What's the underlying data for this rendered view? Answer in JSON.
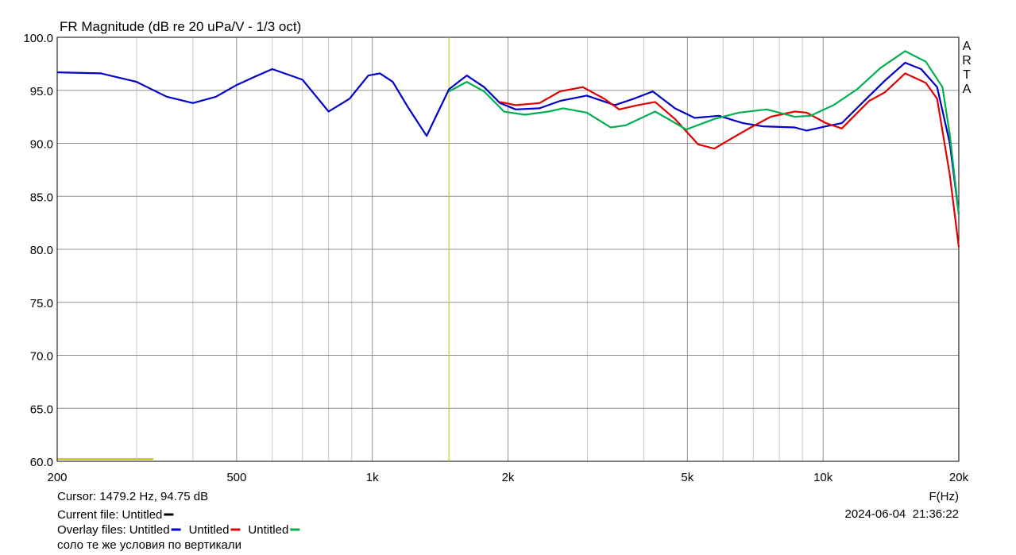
{
  "chart_data": {
    "type": "line",
    "title": "FR Magnitude (dB re 20 uPa/V - 1/3 oct)",
    "x_label": "F(Hz)",
    "log_x": true,
    "grid": true,
    "xlim": [
      200,
      20000
    ],
    "ylim": [
      60,
      100
    ],
    "xticks": [
      200,
      500,
      {
        "value": 1000,
        "label": "1k"
      },
      {
        "value": 2000,
        "label": "2k"
      },
      {
        "value": 5000,
        "label": "5k"
      },
      {
        "value": 10000,
        "label": "10k"
      },
      {
        "value": 20000,
        "label": "20k"
      }
    ],
    "x_minor_grid": [
      300,
      400,
      600,
      700,
      800,
      900,
      3000,
      4000,
      6000,
      7000,
      8000,
      9000
    ],
    "yticks": [
      {
        "value": 60,
        "label": "60.0"
      },
      {
        "value": 65,
        "label": "65.0"
      },
      {
        "value": 70,
        "label": "70.0"
      },
      {
        "value": 75,
        "label": "75.0"
      },
      {
        "value": 80,
        "label": "80.0"
      },
      {
        "value": 85,
        "label": "85.0"
      },
      {
        "value": 90,
        "label": "90.0"
      },
      {
        "value": 95,
        "label": "95.0"
      },
      {
        "value": 100,
        "label": "100.0"
      }
    ],
    "cursor": {
      "x": 1479.2,
      "label": "Cursor: 1479.2 Hz, 94.75 dB",
      "color": "#c8c800"
    },
    "current_file": {
      "label": "Current file:",
      "name": "Untitled",
      "color": "#000000"
    },
    "overlay_label": "Overlay files:",
    "series": [
      {
        "name": "Untitled",
        "color": "#0000c8",
        "x": [
          200,
          250,
          300,
          350,
          400,
          450,
          500,
          550,
          600,
          700,
          800,
          890,
          980,
          1040,
          1110,
          1200,
          1320,
          1390,
          1480,
          1620,
          1770,
          1920,
          2080,
          2350,
          2610,
          2990,
          3450,
          3800,
          4190,
          4690,
          5190,
          5870,
          6640,
          7340,
          8650,
          9190,
          10150,
          11000,
          12400,
          13700,
          15200,
          16500,
          17900,
          19100,
          20000
        ],
        "values": [
          96.7,
          96.6,
          95.8,
          94.4,
          93.8,
          94.4,
          95.5,
          96.3,
          97.0,
          96.0,
          93.0,
          94.2,
          96.4,
          96.6,
          95.8,
          93.4,
          90.7,
          92.7,
          95.1,
          96.4,
          95.3,
          93.8,
          93.2,
          93.3,
          94.0,
          94.5,
          93.6,
          94.2,
          94.9,
          93.3,
          92.4,
          92.6,
          91.9,
          91.6,
          91.5,
          91.2,
          91.6,
          91.9,
          94.1,
          95.9,
          97.6,
          97.0,
          95.3,
          90.0,
          83.3
        ]
      },
      {
        "name": "Untitled",
        "color": "#e00000",
        "x": [
          1920,
          2080,
          2350,
          2610,
          2930,
          3270,
          3530,
          3880,
          4240,
          4690,
          5280,
          5740,
          6230,
          6910,
          7650,
          8650,
          9190,
          10150,
          11000,
          12650,
          13700,
          15200,
          16900,
          17900,
          19100,
          20000
        ],
        "values": [
          93.9,
          93.6,
          93.8,
          94.9,
          95.3,
          94.2,
          93.2,
          93.6,
          93.9,
          92.3,
          89.9,
          89.5,
          90.4,
          91.5,
          92.5,
          93.0,
          92.9,
          91.9,
          91.4,
          94.0,
          94.8,
          96.6,
          95.7,
          94.2,
          87.0,
          80.2
        ]
      },
      {
        "name": "Untitled",
        "color": "#00b050",
        "x": [
          1480,
          1620,
          1770,
          1960,
          2180,
          2460,
          2650,
          2990,
          3380,
          3650,
          4240,
          4490,
          4970,
          5740,
          6510,
          7500,
          8650,
          9380,
          10550,
          11900,
          13400,
          15200,
          16900,
          18400,
          19100,
          20000
        ],
        "values": [
          94.9,
          95.8,
          94.9,
          93.0,
          92.7,
          93.0,
          93.3,
          92.9,
          91.5,
          91.7,
          93.0,
          92.4,
          91.3,
          92.3,
          92.9,
          93.2,
          92.5,
          92.6,
          93.6,
          95.1,
          97.1,
          98.7,
          97.7,
          95.3,
          90.8,
          83.3
        ]
      }
    ],
    "brand": "ARTA",
    "timestamp": "2024-06-04  21:36:22",
    "note": "соло те же условия по вертикали"
  }
}
